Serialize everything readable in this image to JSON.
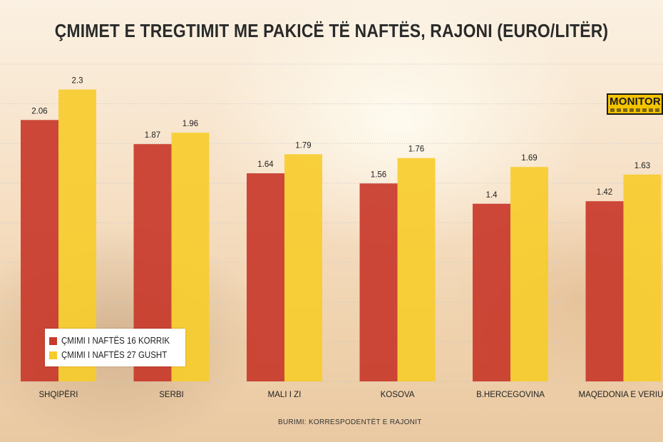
{
  "title": "ÇMIMET E TREGTIMIT ME PAKICË TË NAFTËS, RAJONI (EURO/LITËR)",
  "source": "BURIMI: KORRESPODENTËT E RAJONIT",
  "logo": {
    "text": "MONITOR"
  },
  "colors": {
    "series1": "#c83a2b",
    "series2": "#f7cc2a",
    "grid": "#c8c8c8"
  },
  "chart_data": {
    "type": "bar",
    "categories": [
      "SHQIPËRI",
      "SERBI",
      "MALI I ZI",
      "KOSOVA",
      "B.HERCEGOVINA",
      "MAQEDONIA E VERIUT"
    ],
    "series": [
      {
        "name": "ÇMIMI I NAFTËS 16 KORRIK",
        "values": [
          2.06,
          1.87,
          1.64,
          1.56,
          1.4,
          1.42
        ]
      },
      {
        "name": "ÇMIMI I NAFTËS 27 GUSHT",
        "values": [
          2.3,
          1.96,
          1.79,
          1.76,
          1.69,
          1.63
        ]
      }
    ],
    "xlabel": "",
    "ylabel": "",
    "ylim": [
      0,
      2.5
    ],
    "grid": true,
    "legend_position": "bottom-left"
  }
}
